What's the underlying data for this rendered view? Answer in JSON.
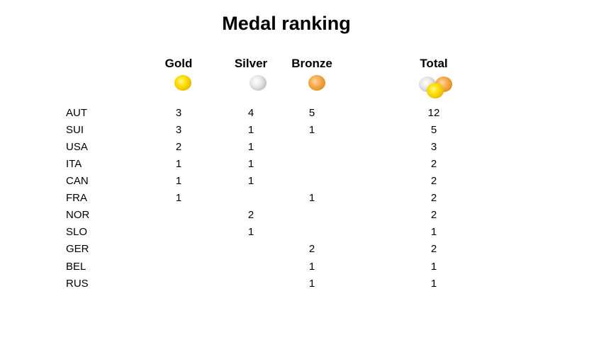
{
  "title": "Medal ranking",
  "columns": {
    "gold": "Gold",
    "silver": "Silver",
    "bronze": "Bronze",
    "total": "Total"
  },
  "medal_colors": {
    "gold": "#ffe100",
    "silver": "#d0d0d0",
    "bronze": "#f0a040"
  },
  "rows": [
    {
      "country": "AUT",
      "gold": "3",
      "silver": "4",
      "bronze": "5",
      "total": "12"
    },
    {
      "country": "SUI",
      "gold": "3",
      "silver": "1",
      "bronze": "1",
      "total": "5"
    },
    {
      "country": "USA",
      "gold": "2",
      "silver": "1",
      "bronze": "",
      "total": "3"
    },
    {
      "country": "ITA",
      "gold": "1",
      "silver": "1",
      "bronze": "",
      "total": "2"
    },
    {
      "country": "CAN",
      "gold": "1",
      "silver": "1",
      "bronze": "",
      "total": "2"
    },
    {
      "country": "FRA",
      "gold": "1",
      "silver": "",
      "bronze": "1",
      "total": "2"
    },
    {
      "country": "NOR",
      "gold": "",
      "silver": "2",
      "bronze": "",
      "total": "2"
    },
    {
      "country": "SLO",
      "gold": "",
      "silver": "1",
      "bronze": "",
      "total": "1"
    },
    {
      "country": "GER",
      "gold": "",
      "silver": "",
      "bronze": "2",
      "total": "2"
    },
    {
      "country": "BEL",
      "gold": "",
      "silver": "",
      "bronze": "1",
      "total": "1"
    },
    {
      "country": "RUS",
      "gold": "",
      "silver": "",
      "bronze": "1",
      "total": "1"
    }
  ]
}
